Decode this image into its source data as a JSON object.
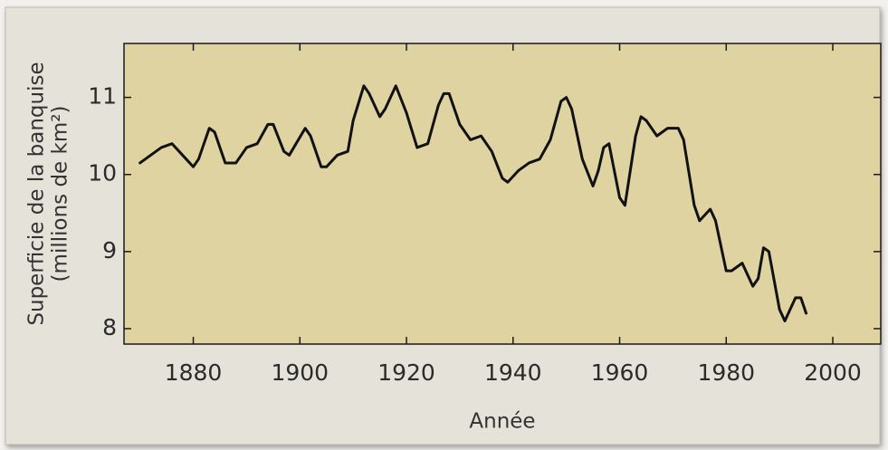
{
  "chart_data": {
    "type": "line",
    "x_label": "Année",
    "y_label": [
      "Superficie de la banquise",
      "(millions de km²)"
    ],
    "xlim": [
      1867,
      2009
    ],
    "xticks": [
      1880,
      1900,
      1920,
      1940,
      1960,
      1980,
      2000
    ],
    "ylim": [
      7.8,
      11.7
    ],
    "yticks": [
      8,
      9,
      10,
      11
    ],
    "grid": false,
    "series": [
      {
        "color": "#111111",
        "x": [
          1870,
          1872,
          1874,
          1876,
          1878,
          1880,
          1881,
          1883,
          1884,
          1886,
          1888,
          1890,
          1892,
          1894,
          1895,
          1897,
          1898,
          1901,
          1902,
          1904,
          1905,
          1907,
          1909,
          1910,
          1912,
          1913,
          1915,
          1916,
          1918,
          1920,
          1922,
          1924,
          1926,
          1927,
          1928,
          1930,
          1932,
          1934,
          1936,
          1938,
          1939,
          1941,
          1943,
          1945,
          1947,
          1949,
          1950,
          1951,
          1953,
          1955,
          1956,
          1957,
          1958,
          1960,
          1961,
          1963,
          1964,
          1965,
          1967,
          1969,
          1971,
          1972,
          1974,
          1975,
          1977,
          1978,
          1980,
          1981,
          1983,
          1985,
          1986,
          1987,
          1988,
          1990,
          1991,
          1993,
          1994,
          1995
        ],
        "values": [
          10.15,
          10.25,
          10.35,
          10.4,
          10.25,
          10.1,
          10.2,
          10.6,
          10.55,
          10.15,
          10.15,
          10.35,
          10.4,
          10.65,
          10.65,
          10.3,
          10.25,
          10.6,
          10.5,
          10.1,
          10.1,
          10.25,
          10.3,
          10.7,
          11.15,
          11.05,
          10.75,
          10.85,
          11.15,
          10.8,
          10.35,
          10.4,
          10.9,
          11.05,
          11.05,
          10.65,
          10.45,
          10.5,
          10.3,
          9.95,
          9.9,
          10.05,
          10.15,
          10.2,
          10.45,
          10.95,
          11.0,
          10.85,
          10.2,
          9.85,
          10.05,
          10.35,
          10.4,
          9.7,
          9.6,
          10.5,
          10.75,
          10.7,
          10.5,
          10.6,
          10.6,
          10.45,
          9.6,
          9.4,
          9.55,
          9.4,
          8.75,
          8.75,
          8.85,
          8.55,
          8.65,
          9.05,
          9.0,
          8.25,
          8.1,
          8.4,
          8.4,
          8.2
        ]
      }
    ]
  }
}
